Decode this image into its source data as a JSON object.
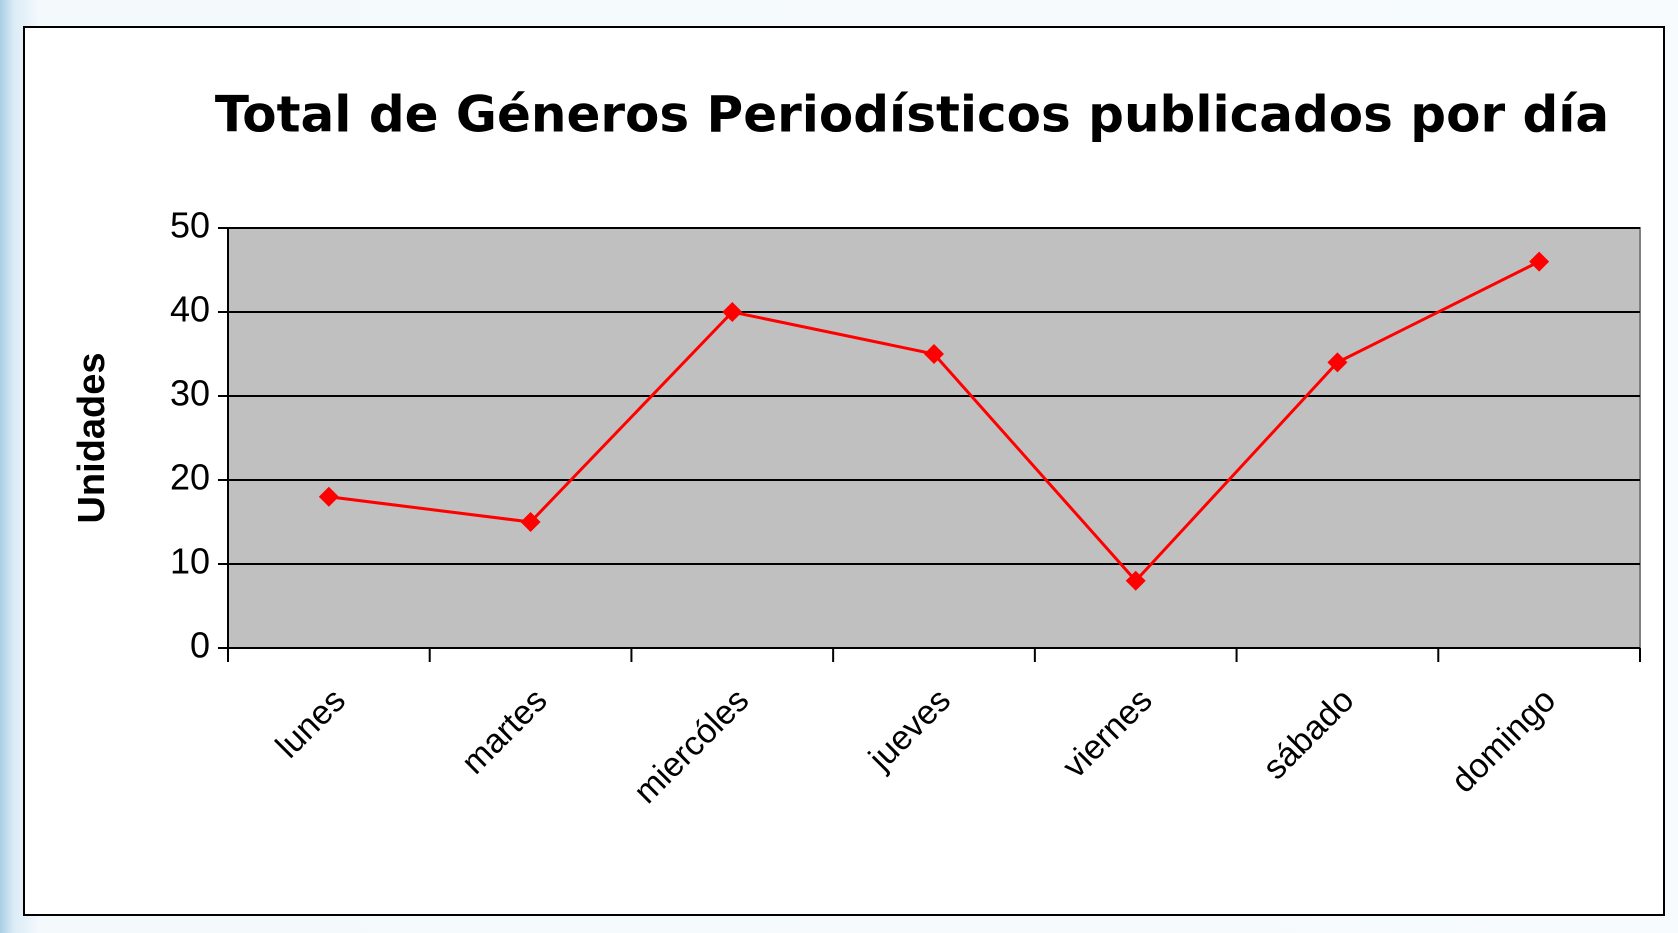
{
  "chart_data": {
    "type": "line",
    "title": "Total de Géneros Periodísticos publicados por día",
    "y_label": "Unidades",
    "categories": [
      "lunes",
      "martes",
      "miercóles",
      "jueves",
      "viernes",
      "sábado",
      "domingo"
    ],
    "series": [
      {
        "name": "Unidades",
        "color": "#ff0000",
        "values": [
          18,
          15,
          40,
          35,
          8,
          34,
          46
        ]
      }
    ],
    "ylim": [
      0,
      50
    ],
    "yticks": [
      0,
      10,
      20,
      30,
      40,
      50
    ],
    "grid": true
  }
}
